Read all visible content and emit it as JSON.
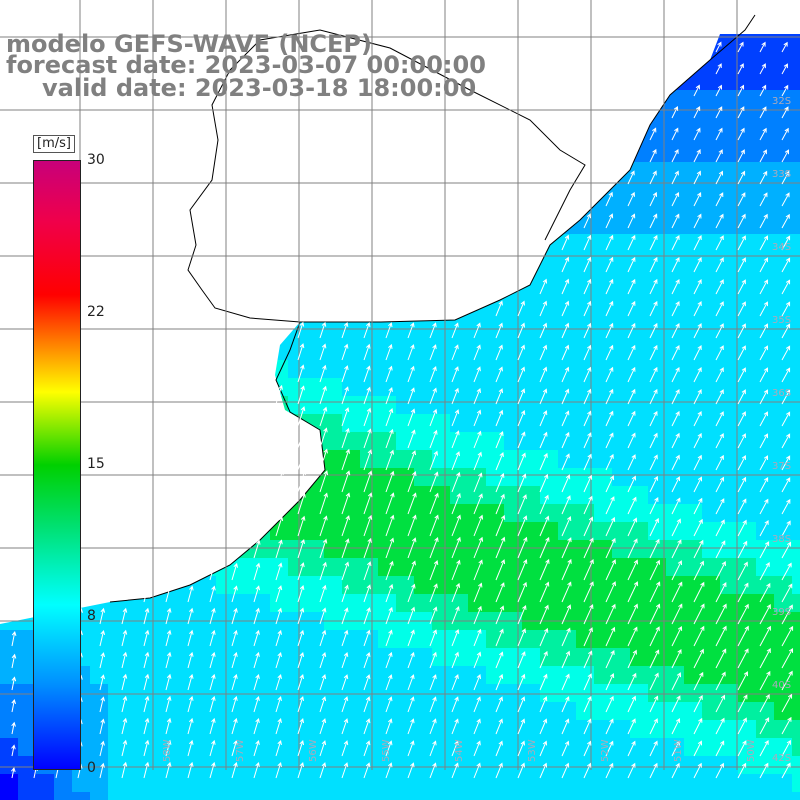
{
  "title": {
    "line1": "modelo GEFS-WAVE (NCEP)",
    "line2": "forecast date: 2023-03-07 00:00:00",
    "line3": "valid date: 2023-03-18 18:00:00"
  },
  "colorbar": {
    "unit": "[m/s]",
    "ticks": [
      "30",
      "22",
      "15",
      "8",
      "0"
    ],
    "range": [
      0,
      30
    ],
    "colors": [
      "#0000ff",
      "#0090ff",
      "#00ffff",
      "#00d000",
      "#ffff00",
      "#ff8000",
      "#ff0000",
      "#c8007a"
    ]
  },
  "map": {
    "lat_labels": [
      "32S",
      "33S",
      "34S",
      "35S",
      "36S",
      "37S",
      "38S",
      "39S",
      "40S",
      "42S"
    ],
    "lon_labels": [
      "58W",
      "57W",
      "56W",
      "55W",
      "54W",
      "53W",
      "52W",
      "51W",
      "50W"
    ],
    "land_color": "#ffffff",
    "coast_color": "#000000",
    "grid_color": "#808080",
    "arrow_color": "#ffffff"
  }
}
